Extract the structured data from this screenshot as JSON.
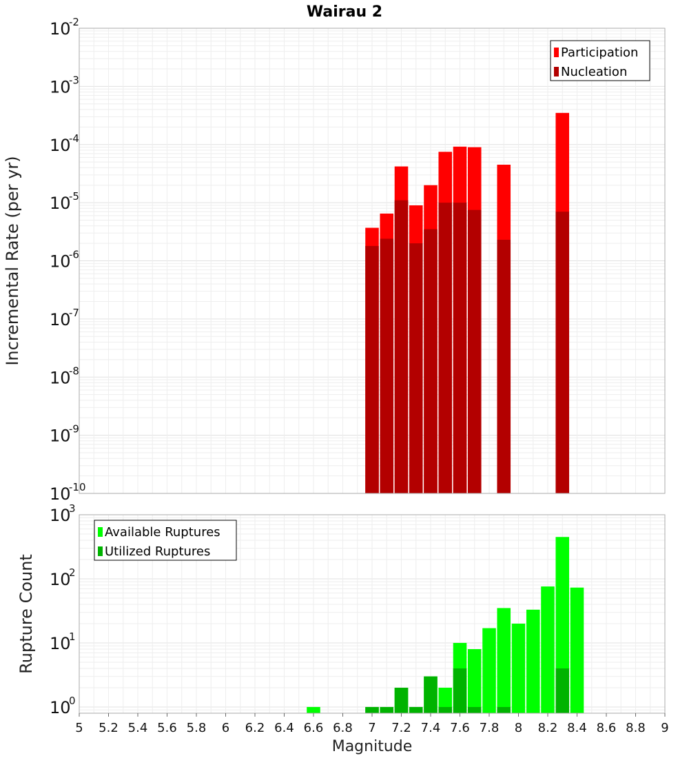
{
  "chart_data": [
    {
      "type": "bar",
      "title": "Wairau 2",
      "ylabel": "Incremental Rate (per yr)",
      "xlabel": "",
      "yscale": "log",
      "ylim": [
        1e-10,
        0.01
      ],
      "xlim": [
        5,
        9
      ],
      "ytick_labels": [
        {
          "base": "10",
          "exp": "-10"
        },
        {
          "base": "10",
          "exp": "-9"
        },
        {
          "base": "10",
          "exp": "-8"
        },
        {
          "base": "10",
          "exp": "-7"
        },
        {
          "base": "10",
          "exp": "-6"
        },
        {
          "base": "10",
          "exp": "-5"
        },
        {
          "base": "10",
          "exp": "-4"
        },
        {
          "base": "10",
          "exp": "-3"
        },
        {
          "base": "10",
          "exp": "-2"
        }
      ],
      "legend_position": "top-right",
      "grid": true,
      "x": [
        7.0,
        7.1,
        7.2,
        7.3,
        7.4,
        7.5,
        7.6,
        7.7,
        7.9,
        8.3
      ],
      "series": [
        {
          "name": "Participation",
          "color": "#ff0000",
          "values": [
            3.7e-06,
            6.5e-06,
            4.2e-05,
            9e-06,
            2e-05,
            7.5e-05,
            9.2e-05,
            9e-05,
            4.5e-05,
            0.00035
          ]
        },
        {
          "name": "Nucleation",
          "color": "#b30000",
          "values": [
            1.8e-06,
            2.4e-06,
            1.1e-05,
            2e-06,
            3.5e-06,
            1e-05,
            1e-05,
            7.5e-06,
            2.3e-06,
            7e-06
          ]
        }
      ]
    },
    {
      "type": "bar",
      "ylabel": "Rupture Count",
      "xlabel": "Magnitude",
      "yscale": "log",
      "ylim": [
        0.8,
        1000
      ],
      "xlim": [
        5,
        9
      ],
      "ytick_labels": [
        {
          "base": "10",
          "exp": "0"
        },
        {
          "base": "10",
          "exp": "1"
        },
        {
          "base": "10",
          "exp": "2"
        },
        {
          "base": "10",
          "exp": "3"
        }
      ],
      "xtick_labels": [
        "5",
        "5.2",
        "5.4",
        "5.6",
        "5.8",
        "6",
        "6.2",
        "6.4",
        "6.6",
        "6.8",
        "7",
        "7.2",
        "7.4",
        "7.6",
        "7.8",
        "8",
        "8.2",
        "8.4",
        "8.6",
        "8.8",
        "9"
      ],
      "legend_position": "top-left",
      "grid": true,
      "x": [
        6.6,
        7.0,
        7.1,
        7.2,
        7.3,
        7.4,
        7.5,
        7.6,
        7.7,
        7.8,
        7.9,
        8.0,
        8.1,
        8.2,
        8.3,
        8.4
      ],
      "series": [
        {
          "name": "Available Ruptures",
          "color": "#00ff00",
          "values": [
            1,
            1,
            1,
            2,
            1,
            3,
            2,
            10,
            8,
            17,
            35,
            20,
            33,
            76,
            450,
            73
          ]
        },
        {
          "name": "Utilized Ruptures",
          "color": "#00b300",
          "values": [
            0,
            1,
            1,
            2,
            1,
            3,
            1,
            4,
            1,
            0,
            1,
            0,
            0,
            0,
            4,
            0
          ]
        }
      ]
    }
  ]
}
